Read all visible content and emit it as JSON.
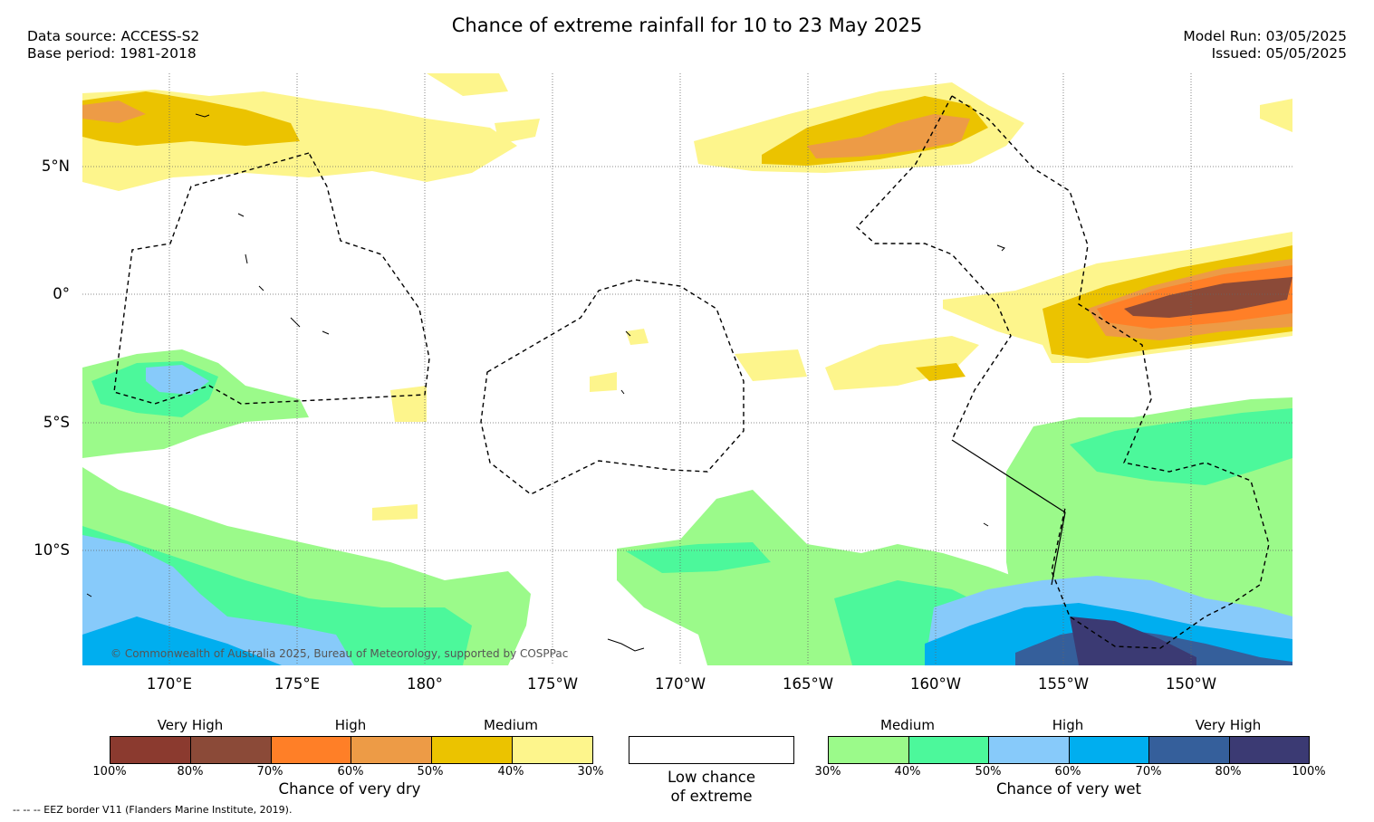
{
  "title": "Chance of extreme rainfall for 10 to 23 May 2025",
  "data_source": "Data source: ACCESS-S2",
  "base_period": "Base period: 1981-2018",
  "model_run": "Model Run: 03/05/2025",
  "issued": "Issued: 05/05/2025",
  "lat_labels": [
    "5°N",
    "0°",
    "5°S",
    "10°S"
  ],
  "lon_labels": [
    "170°E",
    "175°E",
    "180°",
    "175°W",
    "170°W",
    "165°W",
    "160°W",
    "155°W",
    "150°W"
  ],
  "copyright": "© Commonwealth of Australia 2025, Bureau of Meteorology, supported by COSPPac",
  "dry_legend": {
    "categories": [
      "Very High",
      "High",
      "Medium"
    ],
    "ticks": [
      "100%",
      "80%",
      "70%",
      "60%",
      "50%",
      "40%",
      "30%"
    ],
    "colors": [
      "#8b3a2f",
      "#8b4a38",
      "#ff7f27",
      "#ed9b46",
      "#ebc300",
      "#fdf58c"
    ],
    "caption": "Chance of very dry"
  },
  "low_legend": {
    "caption_line1": "Low chance",
    "caption_line2": "of extreme"
  },
  "wet_legend": {
    "categories": [
      "Medium",
      "High",
      "Very High"
    ],
    "ticks": [
      "30%",
      "40%",
      "50%",
      "60%",
      "70%",
      "80%",
      "100%"
    ],
    "colors": [
      "#9bfa8a",
      "#4cf89b",
      "#87cafa",
      "#00aeef",
      "#355f9b",
      "#3b3a73"
    ],
    "caption": "Chance of very wet"
  },
  "footnote": "-- -- -- EEZ border V11 (Flanders Marine Institute, 2019)."
}
